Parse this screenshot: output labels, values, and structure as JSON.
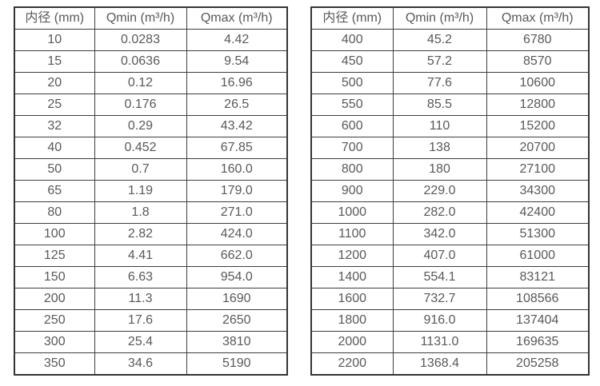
{
  "page": {
    "background_color": "#ffffff",
    "text_color": "#595959",
    "border_color": "#3d3d3d"
  },
  "tables": [
    {
      "name": "flow-table-small-diameters",
      "headers": [
        "内径 (mm)",
        "Qmin (m³/h)",
        "Qmax (m³/h)"
      ],
      "rows": [
        [
          "10",
          "0.0283",
          "4.42"
        ],
        [
          "15",
          "0.0636",
          "9.54"
        ],
        [
          "20",
          "0.12",
          "16.96"
        ],
        [
          "25",
          "0.176",
          "26.5"
        ],
        [
          "32",
          "0.29",
          "43.42"
        ],
        [
          "40",
          "0.452",
          "67.85"
        ],
        [
          "50",
          "0.7",
          "160.0"
        ],
        [
          "65",
          "1.19",
          "179.0"
        ],
        [
          "80",
          "1.8",
          "271.0"
        ],
        [
          "100",
          "2.82",
          "424.0"
        ],
        [
          "125",
          "4.41",
          "662.0"
        ],
        [
          "150",
          "6.63",
          "954.0"
        ],
        [
          "200",
          "11.3",
          "1690"
        ],
        [
          "250",
          "17.6",
          "2650"
        ],
        [
          "300",
          "25.4",
          "3810"
        ],
        [
          "350",
          "34.6",
          "5190"
        ]
      ]
    },
    {
      "name": "flow-table-large-diameters",
      "headers": [
        "内径 (mm)",
        "Qmin (m³/h)",
        "Qmax (m³/h)"
      ],
      "rows": [
        [
          "400",
          "45.2",
          "6780"
        ],
        [
          "450",
          "57.2",
          "8570"
        ],
        [
          "500",
          "77.6",
          "10600"
        ],
        [
          "550",
          "85.5",
          "12800"
        ],
        [
          "600",
          "110",
          "15200"
        ],
        [
          "700",
          "138",
          "20700"
        ],
        [
          "800",
          "180",
          "27100"
        ],
        [
          "900",
          "229.0",
          "34300"
        ],
        [
          "1000",
          "282.0",
          "42400"
        ],
        [
          "1100",
          "342.0",
          "51300"
        ],
        [
          "1200",
          "407.0",
          "61000"
        ],
        [
          "1400",
          "554.1",
          "83121"
        ],
        [
          "1600",
          "732.7",
          "108566"
        ],
        [
          "1800",
          "916.0",
          "137404"
        ],
        [
          "2000",
          "1131.0",
          "169635"
        ],
        [
          "2200",
          "1368.4",
          "205258"
        ]
      ]
    }
  ]
}
